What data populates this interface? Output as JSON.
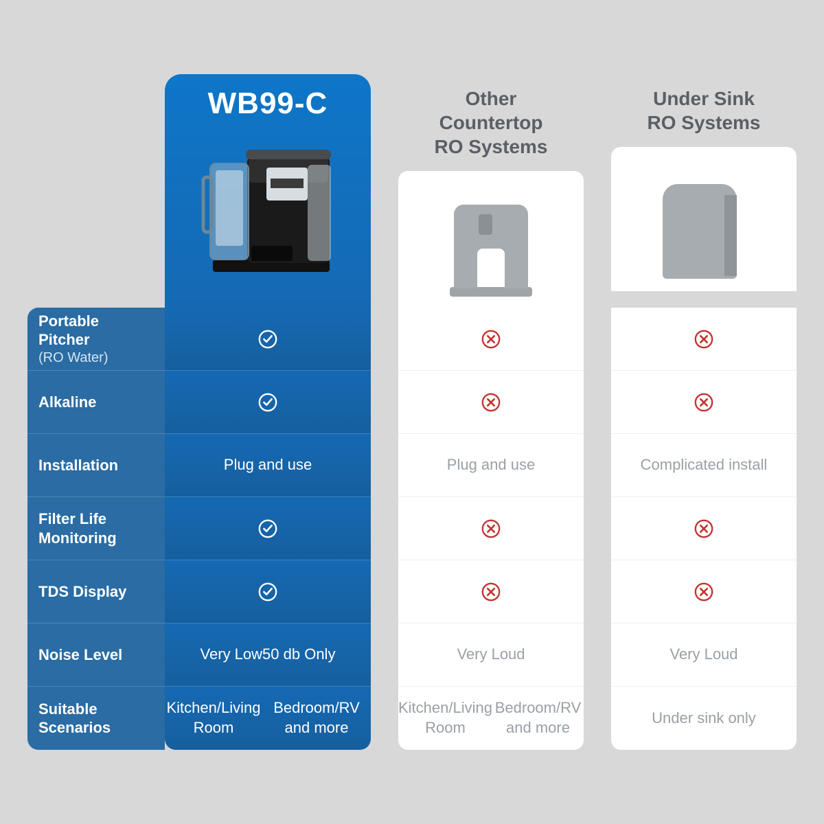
{
  "columns": {
    "main": {
      "title": "WB99-C"
    },
    "other": {
      "title_line1": "Other",
      "title_line2": "Countertop",
      "title_line3": "RO Systems"
    },
    "sink": {
      "title_line1": "Under Sink",
      "title_line2": "RO Systems"
    }
  },
  "rows": [
    {
      "label_main": "Portable Pitcher",
      "label_sub": "(RO Water)",
      "main": "check",
      "other": "cross",
      "sink": "cross"
    },
    {
      "label_main": "Alkaline",
      "main": "check",
      "other": "cross",
      "sink": "cross"
    },
    {
      "label_main": "Installation",
      "main": "Plug and use",
      "other": "Plug and use",
      "sink": "Complicated install"
    },
    {
      "label_main": "Filter Life Monitoring",
      "main": "check",
      "other": "cross",
      "sink": "cross"
    },
    {
      "label_main": "TDS Display",
      "main": "check",
      "other": "cross",
      "sink": "cross"
    },
    {
      "label_main": "Noise Level",
      "main": "Very Low\n50 db Only",
      "other": "Very Loud",
      "sink": "Very Loud"
    },
    {
      "label_main": "Suitable Scenarios",
      "main": "Kitchen/Living Room\nBedroom/RV and more",
      "other": "Kitchen/Living Room\nBedroom/RV and more",
      "sink": "Under sink only"
    }
  ],
  "style": {
    "page_bg": "#d8d8d8",
    "main_col_gradient": [
      "#0e76c8",
      "#165f9e"
    ],
    "label_col_bg": "#2a6ca3",
    "label_text": "#ffffff",
    "value_bg": "#ffffff",
    "value_text": "#9aa0a6",
    "check_color": "#ffffff",
    "cross_color": "#c1342f",
    "title_fontsize": 44,
    "header_other_fontsize": 28,
    "body_fontsize": 22,
    "border_radius": 16
  }
}
